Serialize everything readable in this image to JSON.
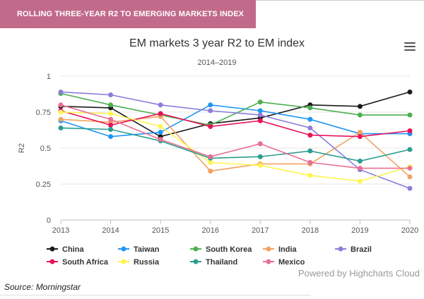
{
  "banner": {
    "title": "ROLLING THREE-YEAR R2 TO EMERGING MARKETS INDEX"
  },
  "footer": {
    "source": "Source: Morningstar",
    "credit": "Powered by Highcharts Cloud"
  },
  "icons": {
    "menu": "hamburger-menu-icon"
  },
  "chart_data": {
    "type": "line",
    "title": "EM markets 3 year R2 to EM index",
    "subtitle": "2014–2019",
    "xlabel": "",
    "ylabel": "R2",
    "x": [
      2013,
      2014,
      2015,
      2016,
      2017,
      2018,
      2019,
      2020
    ],
    "ylim": [
      0,
      1
    ],
    "yticks": [
      0,
      0.25,
      0.5,
      0.75,
      1
    ],
    "ytick_labels": [
      "0",
      "0.25",
      "0.5",
      "0.75",
      "1"
    ],
    "grid": true,
    "legend_position": "bottom",
    "series": [
      {
        "name": "China",
        "color": "#1a1a1a",
        "values": [
          0.79,
          0.78,
          0.58,
          0.67,
          0.71,
          0.8,
          0.79,
          0.89
        ]
      },
      {
        "name": "Taiwan",
        "color": "#2196f3",
        "values": [
          0.69,
          0.58,
          0.61,
          0.8,
          0.76,
          0.7,
          0.6,
          0.6
        ]
      },
      {
        "name": "South Korea",
        "color": "#4caf50",
        "values": [
          0.88,
          0.8,
          0.73,
          0.66,
          0.82,
          0.78,
          0.73,
          0.73
        ]
      },
      {
        "name": "India",
        "color": "#f4a261",
        "values": [
          0.7,
          0.68,
          0.72,
          0.34,
          0.39,
          0.39,
          0.61,
          0.3
        ]
      },
      {
        "name": "Brazil",
        "color": "#8c7ddb",
        "values": [
          0.89,
          0.87,
          0.8,
          0.76,
          0.73,
          0.64,
          0.35,
          0.22
        ]
      },
      {
        "name": "South Africa",
        "color": "#e8135a",
        "values": [
          0.76,
          0.66,
          0.74,
          0.65,
          0.69,
          0.59,
          0.58,
          0.62
        ]
      },
      {
        "name": "Russia",
        "color": "#fff44f",
        "values": [
          0.75,
          0.74,
          0.65,
          0.4,
          0.38,
          0.31,
          0.27,
          0.37
        ]
      },
      {
        "name": "Thailand",
        "color": "#2a9d8f",
        "values": [
          0.64,
          0.63,
          0.55,
          0.43,
          0.44,
          0.48,
          0.41,
          0.49
        ]
      },
      {
        "name": "Mexico",
        "color": "#e96f92",
        "values": [
          0.8,
          0.7,
          0.56,
          0.44,
          0.53,
          0.4,
          0.36,
          0.36
        ]
      }
    ]
  }
}
